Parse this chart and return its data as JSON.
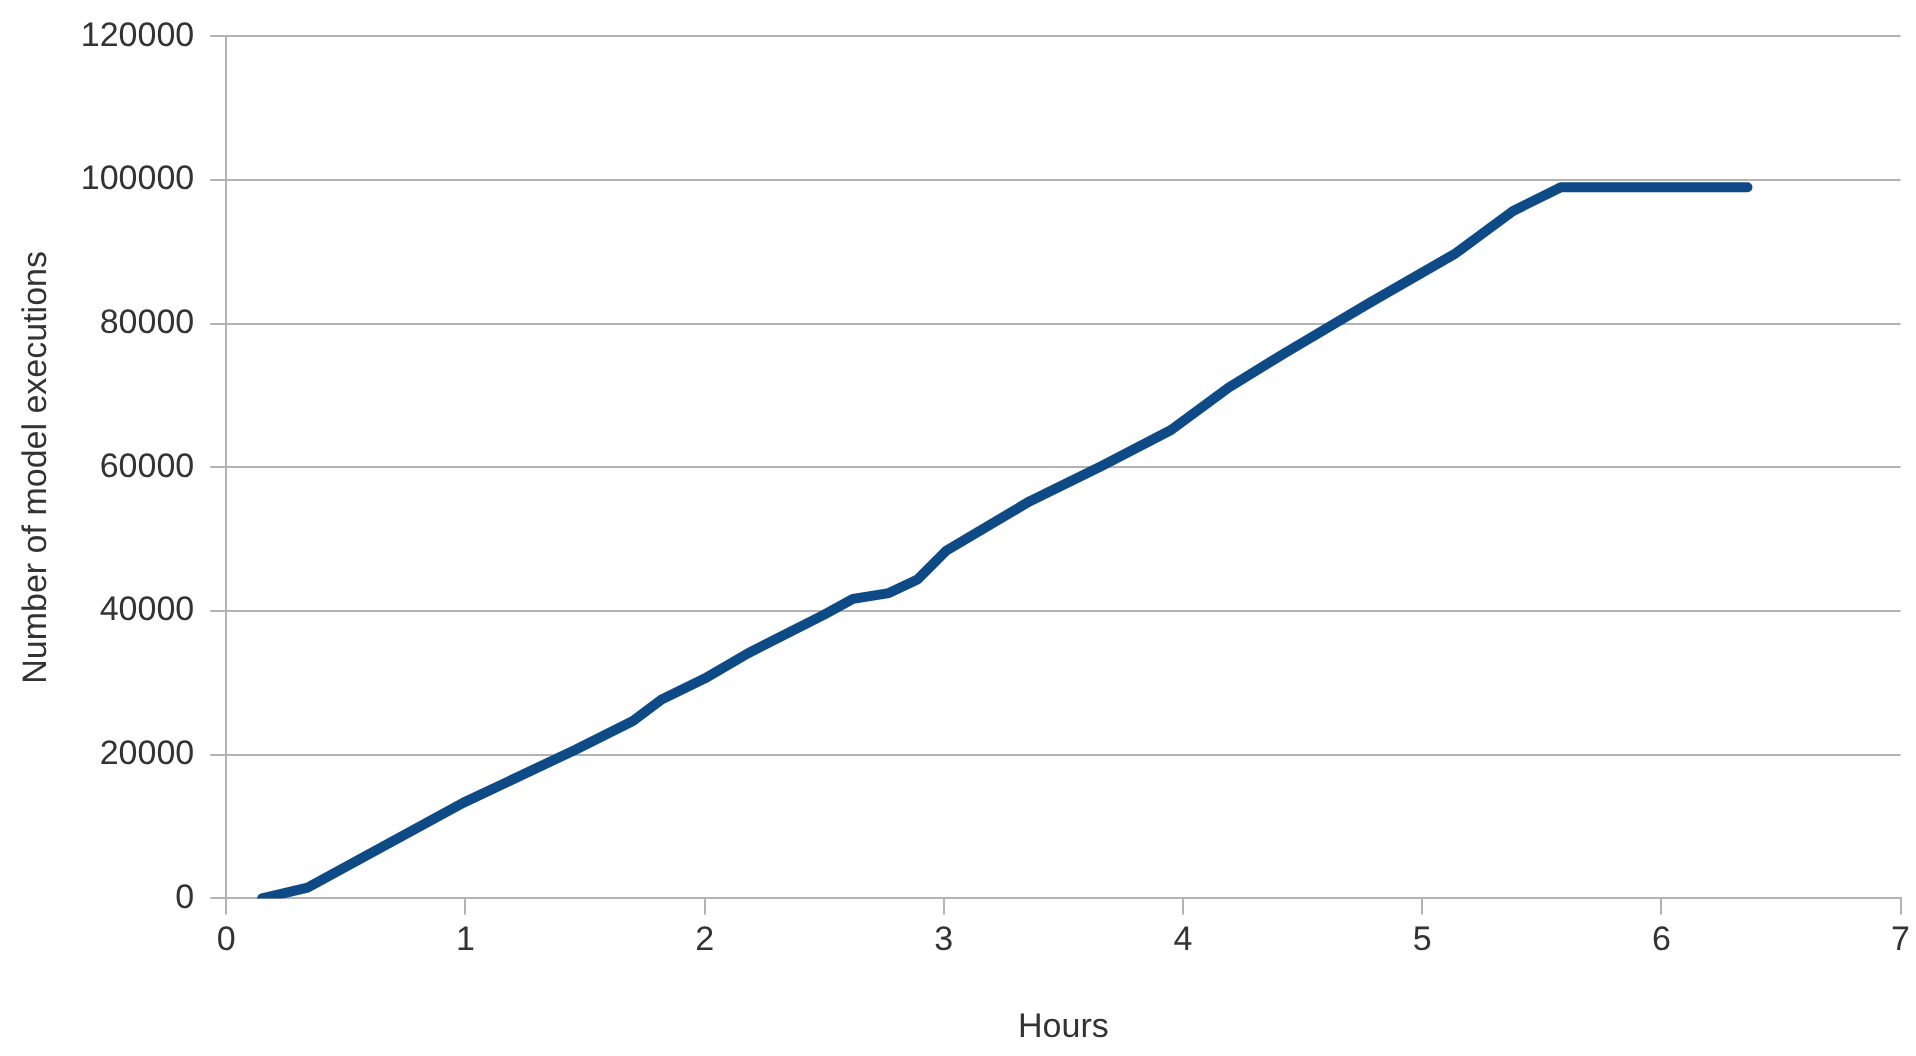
{
  "chart_data": {
    "type": "line",
    "xlabel": "Hours",
    "ylabel": "Number of model executions",
    "xlim": [
      0,
      7
    ],
    "xticks": [
      0,
      1,
      2,
      3,
      4,
      5,
      6,
      7
    ],
    "ylim": [
      0,
      120000
    ],
    "yticks": [
      0,
      20000,
      40000,
      60000,
      80000,
      100000,
      120000
    ],
    "grid": "y",
    "legend": false,
    "marker": "none",
    "line_style": "solid",
    "series": [
      {
        "color": "#0e4a85",
        "x": [
          0.15,
          0.34,
          0.99,
          1.46,
          1.7,
          1.82,
          2.0,
          2.18,
          2.5,
          2.62,
          2.77,
          2.89,
          3.01,
          3.36,
          3.66,
          3.95,
          4.19,
          4.43,
          4.78,
          5.14,
          5.38,
          5.58,
          6.36
        ],
        "values": [
          0,
          1500,
          13300,
          20700,
          24700,
          27700,
          30600,
          34100,
          39500,
          41700,
          42500,
          44400,
          48400,
          55300,
          60200,
          65200,
          71100,
          76000,
          82900,
          89800,
          95700,
          99000,
          99000
        ]
      }
    ]
  }
}
